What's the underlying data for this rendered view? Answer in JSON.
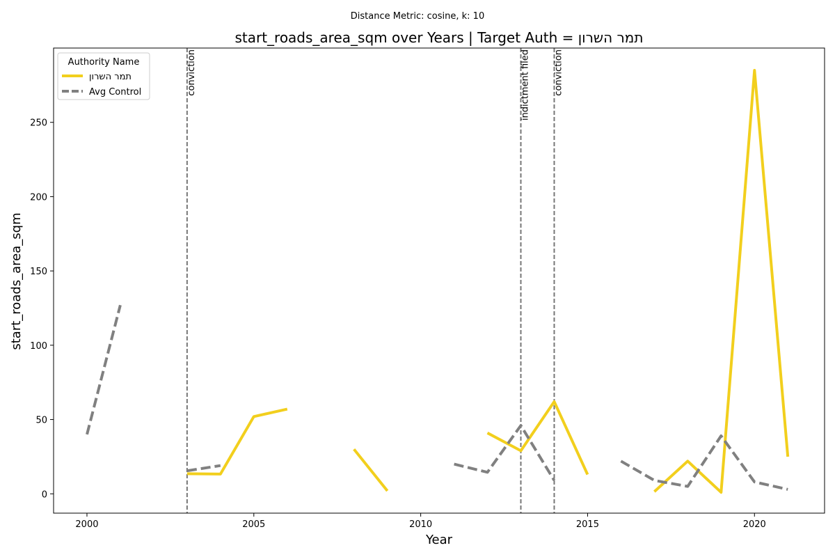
{
  "chart_data": {
    "type": "line",
    "suptitle": "Distance Metric: cosine, k: 10",
    "title": "start_roads_area_sqm over Years | Target Auth = תמר השרון",
    "xlabel": "Year",
    "ylabel": "start_roads_area_sqm",
    "xlim": [
      1999,
      2022.1
    ],
    "ylim": [
      -13,
      300
    ],
    "xticks": [
      2000,
      2005,
      2010,
      2015,
      2020
    ],
    "yticks": [
      0,
      50,
      100,
      150,
      200,
      250
    ],
    "legend": {
      "title": "Authority Name",
      "position": "top-left"
    },
    "series": [
      {
        "name": "תמר השרון",
        "color": "#f2cf1d",
        "style": "solid",
        "segments": [
          [
            [
              2003,
              13.5
            ],
            [
              2004,
              13.3
            ],
            [
              2005,
              52
            ],
            [
              2006,
              57
            ]
          ],
          [
            [
              2008,
              30
            ],
            [
              2009,
              2
            ]
          ],
          [
            [
              2012,
              41
            ],
            [
              2013,
              29
            ],
            [
              2014,
              62
            ],
            [
              2015,
              13
            ]
          ],
          [
            [
              2017,
              1.5
            ],
            [
              2018,
              22
            ],
            [
              2019,
              1
            ],
            [
              2020,
              285
            ],
            [
              2021,
              25
            ]
          ]
        ]
      },
      {
        "name": "Avg Control",
        "color": "#808080",
        "style": "dashed",
        "segments": [
          [
            [
              2000,
              40
            ],
            [
              2001,
              127
            ]
          ],
          [
            [
              2003,
              15.5
            ],
            [
              2004,
              19
            ]
          ],
          [
            [
              2011,
              20
            ],
            [
              2012,
              14.5
            ],
            [
              2013,
              46
            ],
            [
              2014,
              9
            ]
          ],
          [
            [
              2016,
              22
            ],
            [
              2017,
              9
            ],
            [
              2018,
              5
            ],
            [
              2019,
              39
            ],
            [
              2020,
              8
            ],
            [
              2021,
              3
            ]
          ]
        ]
      }
    ],
    "events": [
      {
        "x": 2003,
        "label": "conviction"
      },
      {
        "x": 2013,
        "label": "indictment filed"
      },
      {
        "x": 2014,
        "label": "conviction"
      }
    ]
  }
}
